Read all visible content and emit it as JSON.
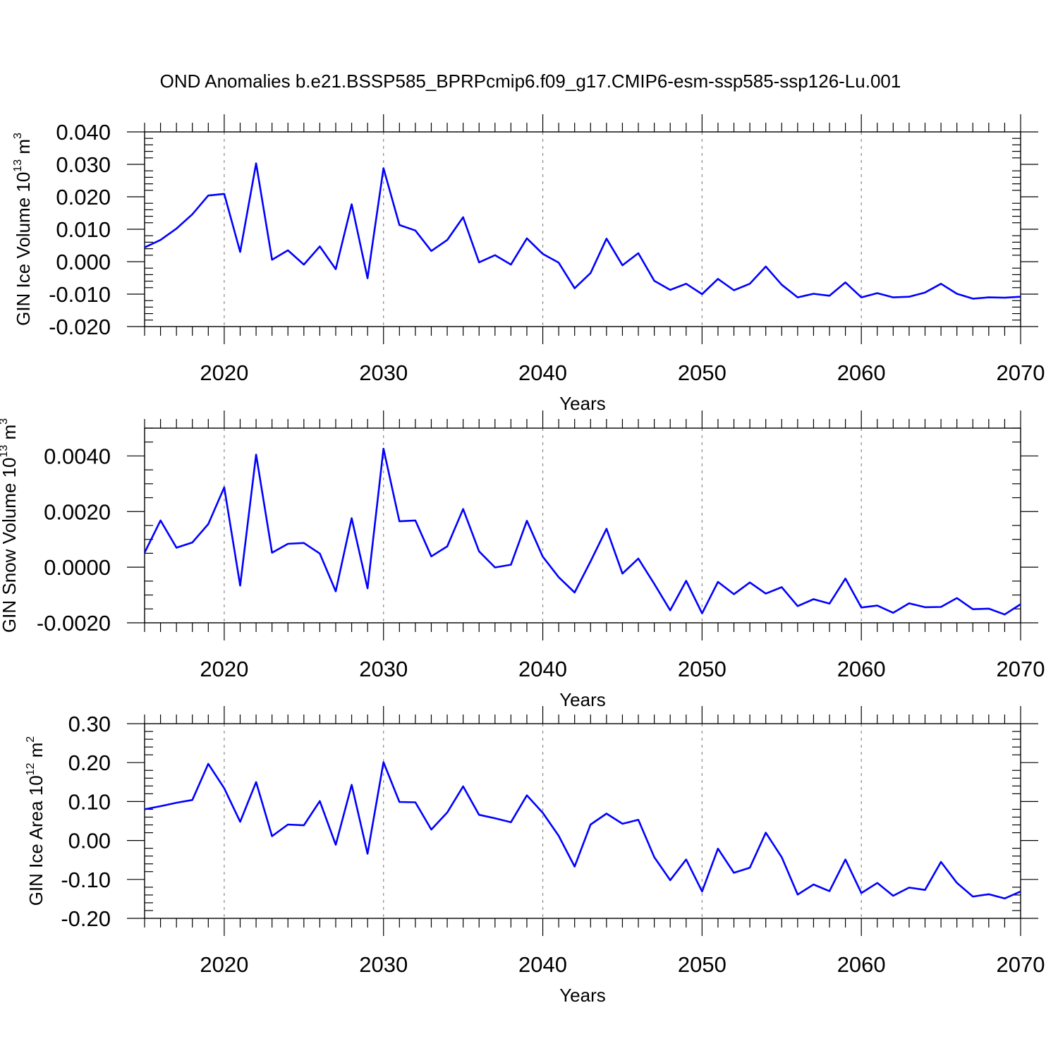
{
  "title": "OND Anomalies b.e21.BSSP585_BPRPcmip6.f09_g17.CMIP6-esm-ssp585-ssp126-Lu.001",
  "line_color": "#0000ff",
  "chart_data": [
    {
      "type": "line",
      "xlabel": "Years",
      "ylabel": {
        "text": "GIN Ice Volume 10",
        "exponent": "13",
        "unit": " m",
        "unit_exponent": "3"
      },
      "xlim": [
        2015,
        2070
      ],
      "ylim": [
        -0.02,
        0.04
      ],
      "x_ticks": [
        "2020",
        "2030",
        "2040",
        "2050",
        "2060",
        "2070"
      ],
      "x_tick_values": [
        2020,
        2030,
        2040,
        2050,
        2060,
        2070
      ],
      "y_ticks": [
        "-0.020",
        "-0.010",
        "0.000",
        "0.010",
        "0.020",
        "0.030",
        "0.040"
      ],
      "y_tick_values": [
        -0.02,
        -0.01,
        0.0,
        0.01,
        0.02,
        0.03,
        0.04
      ],
      "x_minor_step": 1,
      "y_minor_step": 0.002,
      "grid": "vertical dashed at major x ticks",
      "x": [
        2015,
        2016,
        2017,
        2018,
        2019,
        2020,
        2021,
        2022,
        2023,
        2024,
        2025,
        2026,
        2027,
        2028,
        2029,
        2030,
        2031,
        2032,
        2033,
        2034,
        2035,
        2036,
        2037,
        2038,
        2039,
        2040,
        2041,
        2042,
        2043,
        2044,
        2045,
        2046,
        2047,
        2048,
        2049,
        2050,
        2051,
        2052,
        2053,
        2054,
        2055,
        2056,
        2057,
        2058,
        2059,
        2060,
        2061,
        2062,
        2063,
        2064,
        2065,
        2066,
        2067,
        2068,
        2069,
        2070
      ],
      "values": [
        0.0044,
        0.0067,
        0.0102,
        0.0146,
        0.0204,
        0.0209,
        0.003,
        0.0303,
        0.0006,
        0.0035,
        -0.0009,
        0.0047,
        -0.0023,
        0.0177,
        -0.0051,
        0.0288,
        0.0113,
        0.0096,
        0.0033,
        0.0067,
        0.0137,
        -0.0002,
        0.002,
        -0.0009,
        0.0072,
        0.0024,
        -0.0003,
        -0.0082,
        -0.0035,
        0.0071,
        -0.0011,
        0.0026,
        -0.0059,
        -0.0087,
        -0.0068,
        -0.01,
        -0.0053,
        -0.0088,
        -0.0068,
        -0.0015,
        -0.0071,
        -0.011,
        -0.0099,
        -0.0105,
        -0.0064,
        -0.011,
        -0.0097,
        -0.011,
        -0.0108,
        -0.0095,
        -0.0068,
        -0.0099,
        -0.0114,
        -0.011,
        -0.0111,
        -0.0108
      ]
    },
    {
      "type": "line",
      "xlabel": "Years",
      "ylabel": {
        "text": "GIN Snow Volume 10",
        "exponent": "13",
        "unit": " m",
        "unit_exponent": "3"
      },
      "xlim": [
        2015,
        2070
      ],
      "ylim": [
        -0.002,
        0.005
      ],
      "x_ticks": [
        "2020",
        "2030",
        "2040",
        "2050",
        "2060",
        "2070"
      ],
      "x_tick_values": [
        2020,
        2030,
        2040,
        2050,
        2060,
        2070
      ],
      "y_ticks": [
        "-0.0020",
        "0.0000",
        "0.0020",
        "0.0040"
      ],
      "y_tick_values": [
        -0.002,
        0.0,
        0.002,
        0.004
      ],
      "x_minor_step": 1,
      "y_minor_step": 0.0005,
      "grid": "vertical dashed at major x ticks",
      "x": [
        2015,
        2016,
        2017,
        2018,
        2019,
        2020,
        2021,
        2022,
        2023,
        2024,
        2025,
        2026,
        2027,
        2028,
        2029,
        2030,
        2031,
        2032,
        2033,
        2034,
        2035,
        2036,
        2037,
        2038,
        2039,
        2040,
        2041,
        2042,
        2043,
        2044,
        2045,
        2046,
        2047,
        2048,
        2049,
        2050,
        2051,
        2052,
        2053,
        2054,
        2055,
        2056,
        2057,
        2058,
        2059,
        2060,
        2061,
        2062,
        2063,
        2064,
        2065,
        2066,
        2067,
        2068,
        2069,
        2070
      ],
      "values": [
        0.00052,
        0.00168,
        0.0007,
        0.00089,
        0.00155,
        0.00287,
        -0.00066,
        0.00405,
        0.00052,
        0.00084,
        0.00087,
        0.00049,
        -0.00087,
        0.00176,
        -0.00076,
        0.00426,
        0.00165,
        0.00168,
        0.00039,
        0.00075,
        0.00209,
        0.00057,
        -1e-05,
        9e-05,
        0.00167,
        0.00038,
        -0.00036,
        -0.00091,
        0.00021,
        0.00138,
        -0.00023,
        0.00031,
        -0.0006,
        -0.00155,
        -0.00049,
        -0.00166,
        -0.00053,
        -0.00097,
        -0.00055,
        -0.00095,
        -0.00072,
        -0.0014,
        -0.00115,
        -0.00131,
        -0.00041,
        -0.00145,
        -0.00138,
        -0.00164,
        -0.0013,
        -0.00144,
        -0.00143,
        -0.00111,
        -0.00151,
        -0.00149,
        -0.0017,
        -0.00133
      ]
    },
    {
      "type": "line",
      "xlabel": "Years",
      "ylabel": {
        "text": "GIN Ice Area 10",
        "exponent": "12",
        "unit": " m",
        "unit_exponent": "2"
      },
      "xlim": [
        2015,
        2070
      ],
      "ylim": [
        -0.2,
        0.3
      ],
      "x_ticks": [
        "2020",
        "2030",
        "2040",
        "2050",
        "2060",
        "2070"
      ],
      "x_tick_values": [
        2020,
        2030,
        2040,
        2050,
        2060,
        2070
      ],
      "y_ticks": [
        "-0.20",
        "-0.10",
        "0.00",
        "0.10",
        "0.20",
        "0.30"
      ],
      "y_tick_values": [
        -0.2,
        -0.1,
        0.0,
        0.1,
        0.2,
        0.3
      ],
      "x_minor_step": 1,
      "y_minor_step": 0.02,
      "grid": "vertical dashed at major x ticks",
      "x": [
        2015,
        2016,
        2017,
        2018,
        2019,
        2020,
        2021,
        2022,
        2023,
        2024,
        2025,
        2026,
        2027,
        2028,
        2029,
        2030,
        2031,
        2032,
        2033,
        2034,
        2035,
        2036,
        2037,
        2038,
        2039,
        2040,
        2041,
        2042,
        2043,
        2044,
        2045,
        2046,
        2047,
        2048,
        2049,
        2050,
        2051,
        2052,
        2053,
        2054,
        2055,
        2056,
        2057,
        2058,
        2059,
        2060,
        2061,
        2062,
        2063,
        2064,
        2065,
        2066,
        2067,
        2068,
        2069,
        2070
      ],
      "values": [
        0.08,
        0.088,
        0.097,
        0.104,
        0.197,
        0.134,
        0.048,
        0.15,
        0.011,
        0.041,
        0.039,
        0.101,
        -0.011,
        0.143,
        -0.034,
        0.201,
        0.099,
        0.098,
        0.028,
        0.072,
        0.139,
        0.066,
        0.057,
        0.047,
        0.116,
        0.071,
        0.012,
        -0.067,
        0.041,
        0.069,
        0.043,
        0.053,
        -0.043,
        -0.102,
        -0.049,
        -0.131,
        -0.021,
        -0.083,
        -0.07,
        0.02,
        -0.043,
        -0.139,
        -0.113,
        -0.13,
        -0.049,
        -0.135,
        -0.109,
        -0.142,
        -0.121,
        -0.127,
        -0.055,
        -0.109,
        -0.144,
        -0.138,
        -0.149,
        -0.131
      ]
    }
  ]
}
